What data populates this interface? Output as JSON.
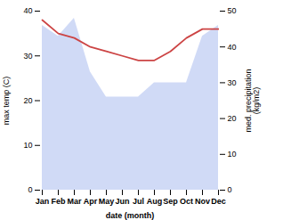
{
  "chart_data": {
    "type": "line",
    "xlabel": "date (month)",
    "ylabel": "max temp (C)",
    "y2label": "med. precipitation\n(kg/m2)",
    "categories": [
      "Jan",
      "Feb",
      "Mar",
      "Apr",
      "May",
      "Jun",
      "Jul",
      "Aug",
      "Sep",
      "Oct",
      "Nov",
      "Dec"
    ],
    "ylim": [
      0,
      40
    ],
    "yticks": [
      0,
      10,
      20,
      30,
      40
    ],
    "y2lim": [
      0,
      50
    ],
    "y2ticks": [
      0,
      10,
      20,
      30,
      40,
      50
    ],
    "grid": false,
    "series": [
      {
        "type": "area",
        "axis": "y2",
        "color": "#aabbee",
        "values": [
          46,
          43,
          48,
          33,
          26,
          26,
          26,
          30,
          30,
          30,
          43,
          46
        ]
      },
      {
        "type": "line",
        "color": "#cc4444",
        "values": [
          38,
          35,
          34,
          32,
          31,
          30,
          29,
          29,
          31,
          34,
          36,
          36
        ]
      }
    ]
  }
}
